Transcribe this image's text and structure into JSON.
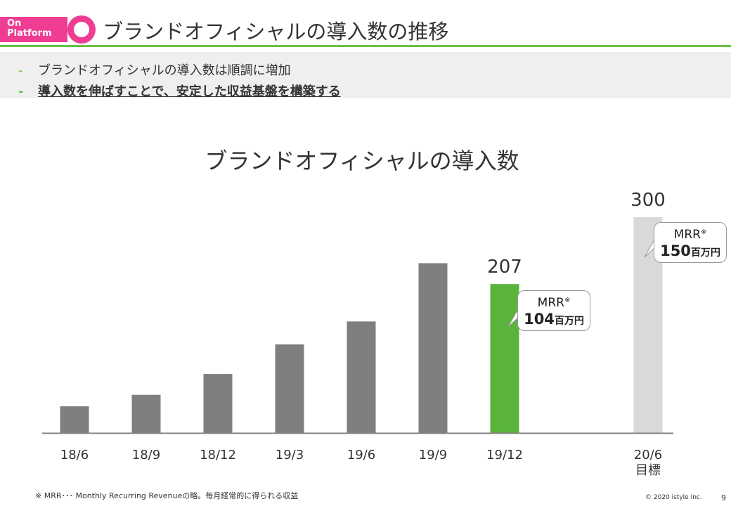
{
  "header": {
    "badge_line1": "On",
    "badge_line2": "Platform",
    "title": "ブランドオフィシャルの導入数の推移"
  },
  "bullets": [
    {
      "dash": "-",
      "text": "ブランドオフィシャルの導入数は順調に増加"
    },
    {
      "dash": "-",
      "text": "導入数を伸ばすことで、安定した収益基盤を構築する"
    }
  ],
  "chart_data": {
    "type": "bar",
    "title": "ブランドオフィシャルの導入数",
    "categories": [
      "18/6",
      "18/9",
      "18/12",
      "19/3",
      "19/6",
      "19/9",
      "19/12",
      "20/6"
    ],
    "category_sublabels": [
      "",
      "",
      "",
      "",
      "",
      "",
      "",
      "目標"
    ],
    "values": [
      37,
      53,
      82,
      123,
      155,
      236,
      207,
      300
    ],
    "data_labels": [
      "",
      "",
      "",
      "",
      "",
      "",
      "207",
      "300"
    ],
    "colors": [
      "#7f7f7f",
      "#7f7f7f",
      "#7f7f7f",
      "#7f7f7f",
      "#7f7f7f",
      "#7f7f7f",
      "#5ab43c",
      "#d9d9d9"
    ],
    "gap_after_index": 6,
    "ylim": [
      0,
      300
    ],
    "xlabel": "",
    "ylabel": "",
    "grid": false,
    "callouts": [
      {
        "category": "19/12",
        "label": "MRR",
        "mark": "※",
        "value": "104",
        "unit": "百万円"
      },
      {
        "category": "20/6",
        "label": "MRR",
        "mark": "※",
        "value": "150",
        "unit": "百万円"
      }
    ]
  },
  "footer": {
    "note": "※ MRR･･･ Monthly Recurring Revenueの略。毎月経常的に得られる収益",
    "copyright": "© 2020 istyle Inc.",
    "page": "9"
  }
}
